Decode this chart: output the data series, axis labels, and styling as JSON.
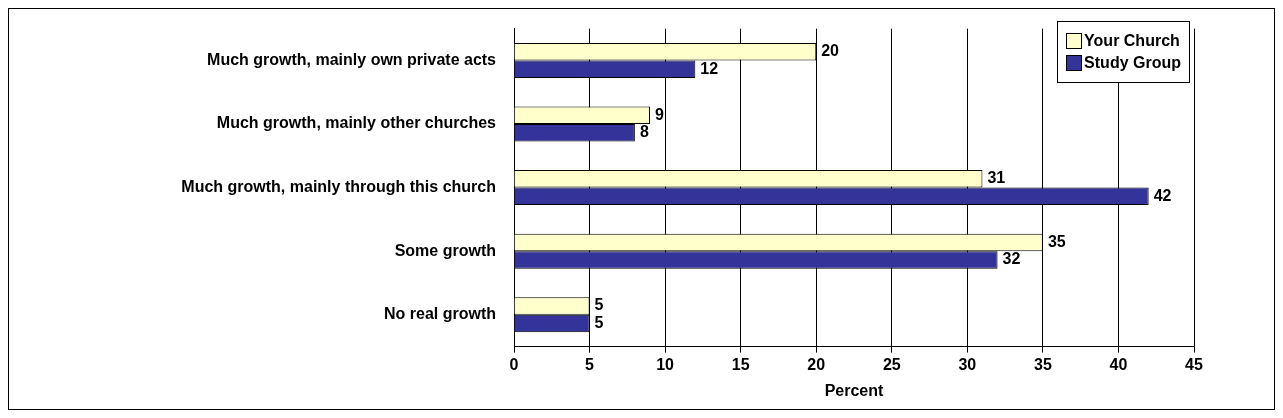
{
  "chart_data": {
    "type": "bar",
    "orientation": "horizontal",
    "xlabel": "Percent",
    "categories": [
      "Much growth, mainly own private acts",
      "Much growth, mainly other churches",
      "Much growth, mainly through this church",
      "Some growth",
      "No real growth"
    ],
    "series": [
      {
        "name": "Your Church",
        "color": "#ffffcc",
        "values": [
          20,
          9,
          31,
          35,
          5
        ]
      },
      {
        "name": "Study Group",
        "color": "#333399",
        "values": [
          12,
          8,
          42,
          32,
          5
        ]
      }
    ],
    "xlim": [
      0,
      45
    ],
    "xticks": [
      0,
      5,
      10,
      15,
      20,
      25,
      30,
      35,
      40,
      45
    ],
    "grid": "x",
    "legend": "top right",
    "data_labels": true
  }
}
